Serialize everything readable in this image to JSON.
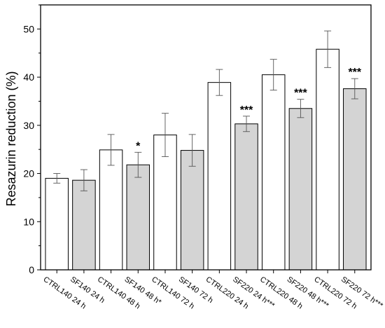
{
  "chart_data": {
    "type": "bar",
    "ylabel": "Resazurin reduction (%)",
    "xlabel": "",
    "ylim": [
      0,
      55
    ],
    "yticks": [
      0,
      10,
      20,
      30,
      40,
      50
    ],
    "categories": [
      "CTRL140 24 h",
      "SF140 24 h",
      "CTRL140 48 h",
      "SF140 48 h*",
      "CTRL140 72 h",
      "SF140 72 h",
      "CTRL220 24 h",
      "SF220 24 h***",
      "CTRL220 48 h",
      "SF220 48 h***",
      "CTRL220 72 h",
      "SF220 72 h***"
    ],
    "values": [
      19.0,
      18.6,
      24.9,
      21.8,
      28.0,
      24.8,
      38.9,
      30.3,
      40.5,
      33.5,
      45.8,
      37.6
    ],
    "errors": [
      1.0,
      2.2,
      3.2,
      2.6,
      4.5,
      3.3,
      2.7,
      1.6,
      3.2,
      1.9,
      3.8,
      2.1
    ],
    "significance": [
      "",
      "",
      "",
      "*",
      "",
      "",
      "",
      "***",
      "",
      "***",
      "",
      "***"
    ],
    "fill_colors": [
      "#ffffff",
      "#d4d4d4"
    ],
    "edge_color": "#000000"
  }
}
